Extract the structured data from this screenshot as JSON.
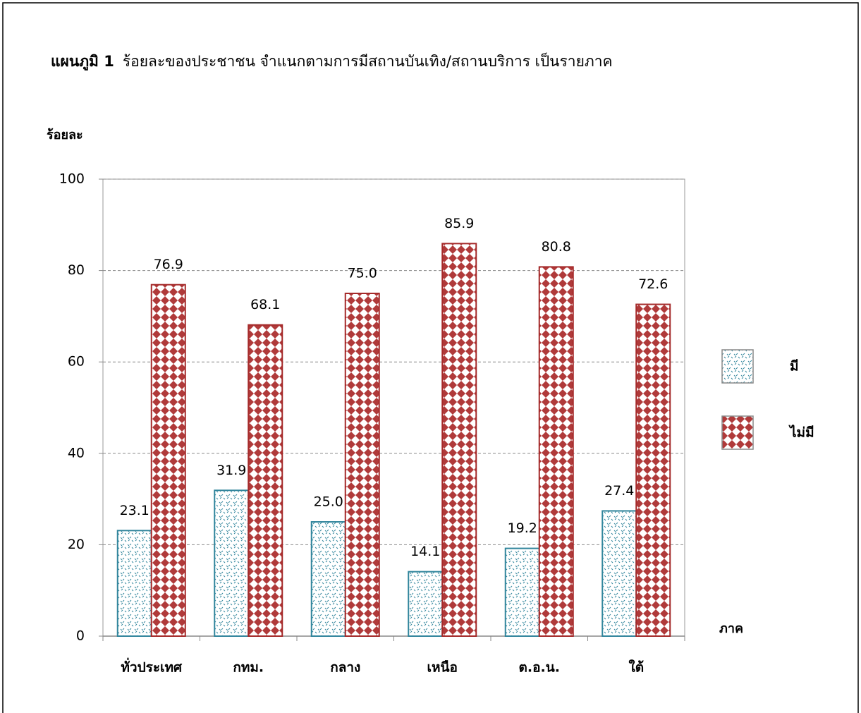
{
  "chart_data": {
    "type": "bar",
    "title_label": "แผนภูมิ 1",
    "title": "ร้อยละของประชาชน  จำแนกตามการมีสถานบันเทิง/สถานบริการ   เป็นรายภาค",
    "y_label": "ร้อยละ",
    "x_label": "ภาค",
    "categories": [
      "ทั่วประเทศ",
      "กทม.",
      "กลาง",
      "เหนือ",
      "ต.อ.น.",
      "ใต้"
    ],
    "series": [
      {
        "name": "มี",
        "color": "#31859c",
        "values": [
          23.1,
          31.9,
          25.0,
          14.1,
          19.2,
          27.4
        ],
        "value_labels": [
          "23.1",
          "31.9",
          "25.0",
          "14.1",
          "19.2",
          "27.4"
        ]
      },
      {
        "name": "ไม่มี",
        "color": "#a52a2a",
        "values": [
          76.9,
          68.1,
          75.0,
          85.9,
          80.8,
          72.6
        ],
        "value_labels": [
          "76.9",
          "68.1",
          "75.0",
          "85.9",
          "80.8",
          "72.6"
        ]
      }
    ],
    "ylim": [
      0,
      100
    ],
    "yticks": [
      0,
      20,
      40,
      60,
      80,
      100
    ],
    "grid": true,
    "legend": "right"
  }
}
